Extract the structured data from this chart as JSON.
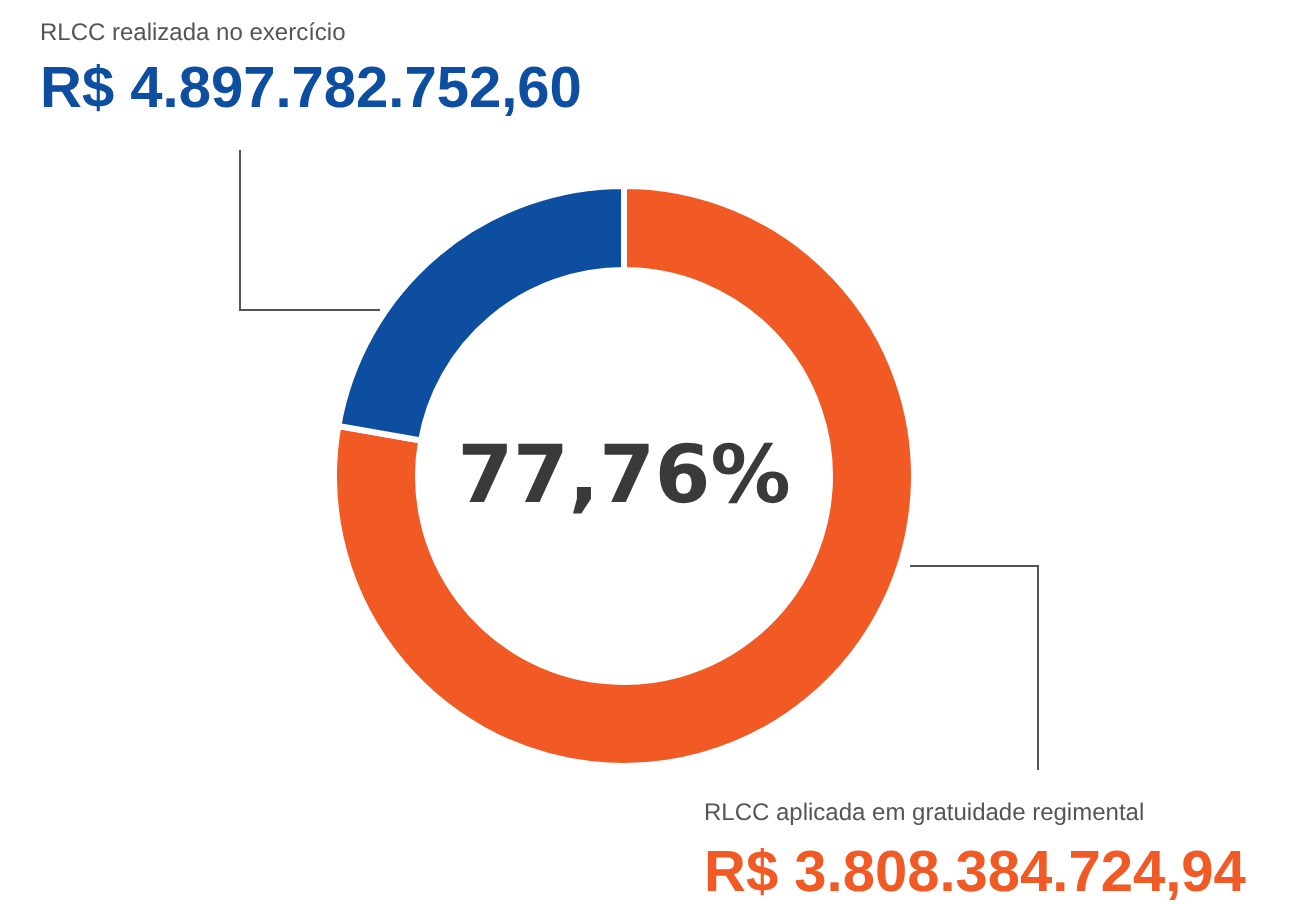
{
  "chart_data": {
    "type": "donut",
    "categories": [
      "RLCC aplicada em gratuidade regimental",
      "RLCC realizada no exercício"
    ],
    "values": [
      77.76,
      22.24
    ],
    "colors": [
      "#f15a24",
      "#0d4ea1"
    ],
    "value_labels": [
      "R$ 3.808.384.724,94",
      "R$ 4.897.782.752,60"
    ],
    "annotations": [
      "77,76%"
    ],
    "legend": false
  }
}
